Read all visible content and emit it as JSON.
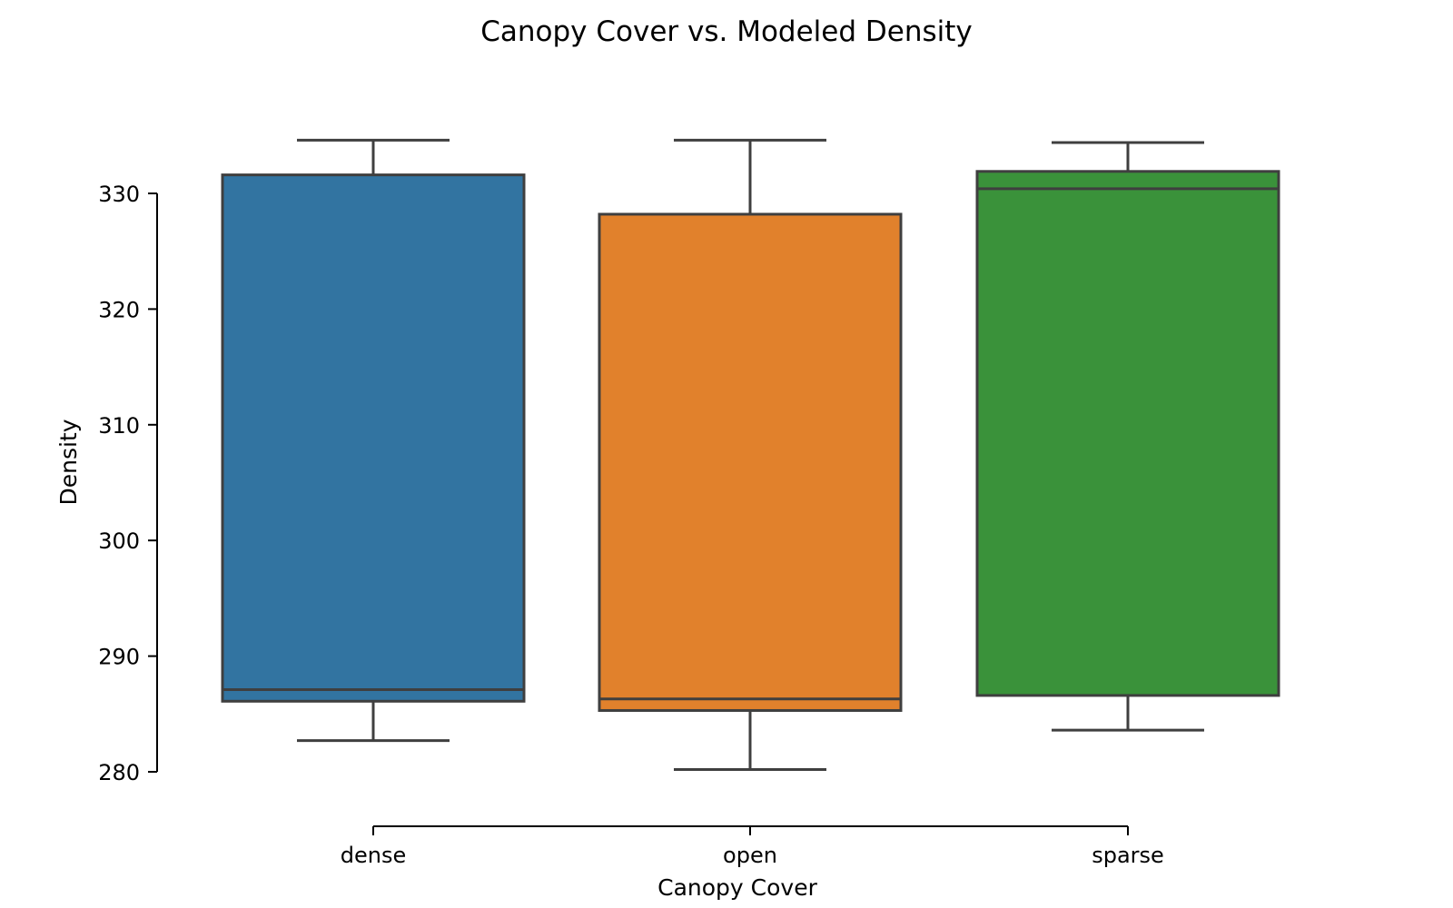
{
  "chart_data": {
    "type": "box",
    "title": "Canopy Cover vs. Modeled Density",
    "xlabel": "Canopy Cover",
    "ylabel": "Density",
    "categories": [
      "dense",
      "open",
      "sparse"
    ],
    "boxes": [
      {
        "category": "dense",
        "whisker_low": 282.7,
        "q1": 286.1,
        "median": 287.1,
        "q3": 331.6,
        "whisker_high": 334.6,
        "color": "#3274a1"
      },
      {
        "category": "open",
        "whisker_low": 280.2,
        "q1": 285.3,
        "median": 286.3,
        "q3": 328.2,
        "whisker_high": 334.6,
        "color": "#e1812c"
      },
      {
        "category": "sparse",
        "whisker_low": 283.6,
        "q1": 286.6,
        "median": 330.4,
        "q3": 331.9,
        "whisker_high": 334.4,
        "color": "#3a923a"
      }
    ],
    "yticks": [
      280,
      290,
      300,
      310,
      320,
      330
    ],
    "ylim": [
      280,
      330
    ],
    "grid": false,
    "legend": "none"
  }
}
